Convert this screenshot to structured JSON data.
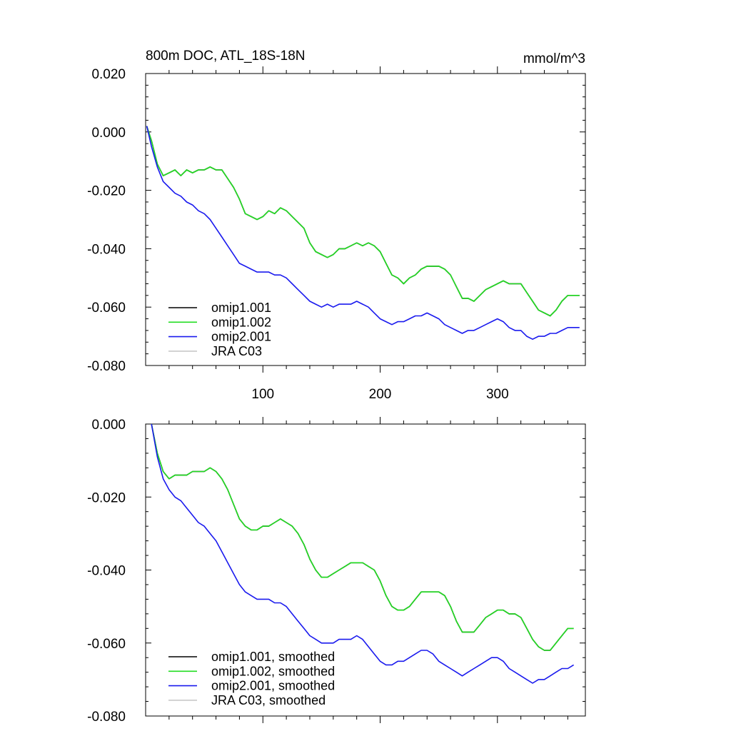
{
  "chart_data": [
    {
      "type": "line",
      "title": "800m DOC, ATL_18S-18N",
      "units": "mmol/m^3",
      "xlim": [
        0,
        375
      ],
      "ylim": [
        -0.08,
        0.02
      ],
      "xticks": [
        100,
        200,
        300
      ],
      "xtick_labels": [
        "100",
        "200",
        "300"
      ],
      "yticks": [
        0.02,
        0.0,
        -0.02,
        -0.04,
        -0.06,
        -0.08
      ],
      "ytick_labels": [
        "0.020",
        "0.000",
        "-0.020",
        "-0.040",
        "-0.060",
        "-0.080"
      ],
      "legend": [
        "omip1.001",
        "omip1.002",
        "omip2.001",
        "JRA C03"
      ],
      "series": [
        {
          "name": "omip1.001",
          "color": "#000000",
          "x": [
            1,
            5,
            10,
            15,
            20,
            25,
            30,
            35,
            40,
            45,
            50,
            55,
            60,
            65,
            70,
            75,
            80,
            85,
            90,
            95,
            100,
            105,
            110,
            115,
            120,
            125,
            130,
            135,
            140,
            145,
            150,
            155,
            160,
            165,
            170,
            175,
            180,
            185,
            190,
            195,
            200,
            205,
            210,
            215,
            220,
            225,
            230,
            235,
            240,
            245,
            250,
            255,
            260,
            265,
            270,
            275,
            280,
            285,
            290,
            295,
            300,
            305,
            310,
            315,
            320,
            325,
            330,
            335,
            340,
            345,
            350,
            355,
            360,
            365,
            370
          ],
          "values": [
            0.002,
            -0.003,
            -0.011,
            -0.015,
            -0.014,
            -0.013,
            -0.015,
            -0.013,
            -0.014,
            -0.013,
            -0.013,
            -0.012,
            -0.013,
            -0.013,
            -0.016,
            -0.019,
            -0.023,
            -0.028,
            -0.029,
            -0.03,
            -0.029,
            -0.027,
            -0.028,
            -0.026,
            -0.027,
            -0.029,
            -0.031,
            -0.033,
            -0.038,
            -0.041,
            -0.042,
            -0.043,
            -0.042,
            -0.04,
            -0.04,
            -0.039,
            -0.038,
            -0.039,
            -0.038,
            -0.039,
            -0.041,
            -0.045,
            -0.049,
            -0.05,
            -0.052,
            -0.05,
            -0.049,
            -0.047,
            -0.046,
            -0.046,
            -0.046,
            -0.047,
            -0.049,
            -0.053,
            -0.057,
            -0.057,
            -0.058,
            -0.056,
            -0.054,
            -0.053,
            -0.052,
            -0.051,
            -0.052,
            -0.052,
            -0.052,
            -0.055,
            -0.058,
            -0.061,
            -0.062,
            -0.063,
            -0.061,
            -0.058,
            -0.056,
            -0.056,
            -0.056
          ]
        },
        {
          "name": "omip1.002",
          "color": "#22dd22",
          "x": [
            1,
            5,
            10,
            15,
            20,
            25,
            30,
            35,
            40,
            45,
            50,
            55,
            60,
            65,
            70,
            75,
            80,
            85,
            90,
            95,
            100,
            105,
            110,
            115,
            120,
            125,
            130,
            135,
            140,
            145,
            150,
            155,
            160,
            165,
            170,
            175,
            180,
            185,
            190,
            195,
            200,
            205,
            210,
            215,
            220,
            225,
            230,
            235,
            240,
            245,
            250,
            255,
            260,
            265,
            270,
            275,
            280,
            285,
            290,
            295,
            300,
            305,
            310,
            315,
            320,
            325,
            330,
            335,
            340,
            345,
            350,
            355,
            360,
            365,
            370
          ],
          "values": [
            0.002,
            -0.003,
            -0.011,
            -0.015,
            -0.014,
            -0.013,
            -0.015,
            -0.013,
            -0.014,
            -0.013,
            -0.013,
            -0.012,
            -0.013,
            -0.013,
            -0.016,
            -0.019,
            -0.023,
            -0.028,
            -0.029,
            -0.03,
            -0.029,
            -0.027,
            -0.028,
            -0.026,
            -0.027,
            -0.029,
            -0.031,
            -0.033,
            -0.038,
            -0.041,
            -0.042,
            -0.043,
            -0.042,
            -0.04,
            -0.04,
            -0.039,
            -0.038,
            -0.039,
            -0.038,
            -0.039,
            -0.041,
            -0.045,
            -0.049,
            -0.05,
            -0.052,
            -0.05,
            -0.049,
            -0.047,
            -0.046,
            -0.046,
            -0.046,
            -0.047,
            -0.049,
            -0.053,
            -0.057,
            -0.057,
            -0.058,
            -0.056,
            -0.054,
            -0.053,
            -0.052,
            -0.051,
            -0.052,
            -0.052,
            -0.052,
            -0.055,
            -0.058,
            -0.061,
            -0.062,
            -0.063,
            -0.061,
            -0.058,
            -0.056,
            -0.056,
            -0.056
          ]
        },
        {
          "name": "omip2.001",
          "color": "#1a1aee",
          "x": [
            1,
            5,
            10,
            15,
            20,
            25,
            30,
            35,
            40,
            45,
            50,
            55,
            60,
            65,
            70,
            75,
            80,
            85,
            90,
            95,
            100,
            105,
            110,
            115,
            120,
            125,
            130,
            135,
            140,
            145,
            150,
            155,
            160,
            165,
            170,
            175,
            180,
            185,
            190,
            195,
            200,
            205,
            210,
            215,
            220,
            225,
            230,
            235,
            240,
            245,
            250,
            255,
            260,
            265,
            270,
            275,
            280,
            285,
            290,
            295,
            300,
            305,
            310,
            315,
            320,
            325,
            330,
            335,
            340,
            345,
            350,
            355,
            360,
            365,
            370
          ],
          "values": [
            0.002,
            -0.005,
            -0.012,
            -0.017,
            -0.019,
            -0.021,
            -0.022,
            -0.024,
            -0.025,
            -0.027,
            -0.028,
            -0.03,
            -0.033,
            -0.036,
            -0.039,
            -0.042,
            -0.045,
            -0.046,
            -0.047,
            -0.048,
            -0.048,
            -0.048,
            -0.049,
            -0.049,
            -0.05,
            -0.052,
            -0.054,
            -0.056,
            -0.058,
            -0.059,
            -0.06,
            -0.059,
            -0.06,
            -0.059,
            -0.059,
            -0.059,
            -0.058,
            -0.059,
            -0.06,
            -0.062,
            -0.064,
            -0.065,
            -0.066,
            -0.065,
            -0.065,
            -0.064,
            -0.063,
            -0.063,
            -0.062,
            -0.063,
            -0.064,
            -0.066,
            -0.067,
            -0.068,
            -0.069,
            -0.068,
            -0.068,
            -0.067,
            -0.066,
            -0.065,
            -0.064,
            -0.065,
            -0.067,
            -0.068,
            -0.068,
            -0.07,
            -0.071,
            -0.07,
            -0.07,
            -0.069,
            -0.069,
            -0.068,
            -0.067,
            -0.067,
            -0.067
          ]
        },
        {
          "name": "JRA C03",
          "color": "#c8c8c8",
          "x": [],
          "values": []
        }
      ]
    },
    {
      "type": "line",
      "title": "",
      "xlim": [
        0,
        375
      ],
      "ylim": [
        -0.08,
        0.0
      ],
      "xticks": [
        100,
        200,
        300
      ],
      "xtick_labels": [],
      "yticks": [
        0.0,
        -0.02,
        -0.04,
        -0.06,
        -0.08
      ],
      "ytick_labels": [
        "0.000",
        "-0.020",
        "-0.040",
        "-0.060",
        "-0.080"
      ],
      "legend": [
        "omip1.001, smoothed",
        "omip1.002, smoothed",
        "omip2.001, smoothed",
        "JRA C03, smoothed"
      ],
      "series": [
        {
          "name": "omip1.001, smoothed",
          "color": "#000000",
          "x": [
            5,
            10,
            15,
            20,
            25,
            30,
            35,
            40,
            45,
            50,
            55,
            60,
            65,
            70,
            75,
            80,
            85,
            90,
            95,
            100,
            105,
            110,
            115,
            120,
            125,
            130,
            135,
            140,
            145,
            150,
            155,
            160,
            165,
            170,
            175,
            180,
            185,
            190,
            195,
            200,
            205,
            210,
            215,
            220,
            225,
            230,
            235,
            240,
            245,
            250,
            255,
            260,
            265,
            270,
            275,
            280,
            285,
            290,
            295,
            300,
            305,
            310,
            315,
            320,
            325,
            330,
            335,
            340,
            345,
            350,
            355,
            360,
            365
          ],
          "values": [
            0.0,
            -0.008,
            -0.013,
            -0.015,
            -0.014,
            -0.014,
            -0.014,
            -0.013,
            -0.013,
            -0.013,
            -0.012,
            -0.013,
            -0.015,
            -0.018,
            -0.022,
            -0.026,
            -0.028,
            -0.029,
            -0.029,
            -0.028,
            -0.028,
            -0.027,
            -0.026,
            -0.027,
            -0.028,
            -0.03,
            -0.033,
            -0.037,
            -0.04,
            -0.042,
            -0.042,
            -0.041,
            -0.04,
            -0.039,
            -0.038,
            -0.038,
            -0.038,
            -0.039,
            -0.04,
            -0.043,
            -0.047,
            -0.05,
            -0.051,
            -0.051,
            -0.05,
            -0.048,
            -0.046,
            -0.046,
            -0.046,
            -0.046,
            -0.047,
            -0.05,
            -0.054,
            -0.057,
            -0.057,
            -0.057,
            -0.055,
            -0.053,
            -0.052,
            -0.051,
            -0.051,
            -0.052,
            -0.052,
            -0.053,
            -0.056,
            -0.059,
            -0.061,
            -0.062,
            -0.062,
            -0.06,
            -0.058,
            -0.056,
            -0.056
          ]
        },
        {
          "name": "omip1.002, smoothed",
          "color": "#22dd22",
          "x": [
            5,
            10,
            15,
            20,
            25,
            30,
            35,
            40,
            45,
            50,
            55,
            60,
            65,
            70,
            75,
            80,
            85,
            90,
            95,
            100,
            105,
            110,
            115,
            120,
            125,
            130,
            135,
            140,
            145,
            150,
            155,
            160,
            165,
            170,
            175,
            180,
            185,
            190,
            195,
            200,
            205,
            210,
            215,
            220,
            225,
            230,
            235,
            240,
            245,
            250,
            255,
            260,
            265,
            270,
            275,
            280,
            285,
            290,
            295,
            300,
            305,
            310,
            315,
            320,
            325,
            330,
            335,
            340,
            345,
            350,
            355,
            360,
            365
          ],
          "values": [
            0.0,
            -0.008,
            -0.013,
            -0.015,
            -0.014,
            -0.014,
            -0.014,
            -0.013,
            -0.013,
            -0.013,
            -0.012,
            -0.013,
            -0.015,
            -0.018,
            -0.022,
            -0.026,
            -0.028,
            -0.029,
            -0.029,
            -0.028,
            -0.028,
            -0.027,
            -0.026,
            -0.027,
            -0.028,
            -0.03,
            -0.033,
            -0.037,
            -0.04,
            -0.042,
            -0.042,
            -0.041,
            -0.04,
            -0.039,
            -0.038,
            -0.038,
            -0.038,
            -0.039,
            -0.04,
            -0.043,
            -0.047,
            -0.05,
            -0.051,
            -0.051,
            -0.05,
            -0.048,
            -0.046,
            -0.046,
            -0.046,
            -0.046,
            -0.047,
            -0.05,
            -0.054,
            -0.057,
            -0.057,
            -0.057,
            -0.055,
            -0.053,
            -0.052,
            -0.051,
            -0.051,
            -0.052,
            -0.052,
            -0.053,
            -0.056,
            -0.059,
            -0.061,
            -0.062,
            -0.062,
            -0.06,
            -0.058,
            -0.056,
            -0.056
          ]
        },
        {
          "name": "omip2.001, smoothed",
          "color": "#1a1aee",
          "x": [
            5,
            10,
            15,
            20,
            25,
            30,
            35,
            40,
            45,
            50,
            55,
            60,
            65,
            70,
            75,
            80,
            85,
            90,
            95,
            100,
            105,
            110,
            115,
            120,
            125,
            130,
            135,
            140,
            145,
            150,
            155,
            160,
            165,
            170,
            175,
            180,
            185,
            190,
            195,
            200,
            205,
            210,
            215,
            220,
            225,
            230,
            235,
            240,
            245,
            250,
            255,
            260,
            265,
            270,
            275,
            280,
            285,
            290,
            295,
            300,
            305,
            310,
            315,
            320,
            325,
            330,
            335,
            340,
            345,
            350,
            355,
            360,
            365
          ],
          "values": [
            0.0,
            -0.009,
            -0.015,
            -0.018,
            -0.02,
            -0.021,
            -0.023,
            -0.025,
            -0.027,
            -0.028,
            -0.03,
            -0.032,
            -0.035,
            -0.038,
            -0.041,
            -0.044,
            -0.046,
            -0.047,
            -0.048,
            -0.048,
            -0.048,
            -0.049,
            -0.049,
            -0.05,
            -0.052,
            -0.054,
            -0.056,
            -0.058,
            -0.059,
            -0.06,
            -0.06,
            -0.06,
            -0.059,
            -0.059,
            -0.059,
            -0.058,
            -0.059,
            -0.061,
            -0.063,
            -0.065,
            -0.066,
            -0.066,
            -0.065,
            -0.065,
            -0.064,
            -0.063,
            -0.062,
            -0.062,
            -0.063,
            -0.065,
            -0.066,
            -0.067,
            -0.068,
            -0.069,
            -0.068,
            -0.067,
            -0.066,
            -0.065,
            -0.064,
            -0.064,
            -0.065,
            -0.067,
            -0.068,
            -0.069,
            -0.07,
            -0.071,
            -0.07,
            -0.07,
            -0.069,
            -0.068,
            -0.067,
            -0.067,
            -0.066
          ]
        },
        {
          "name": "JRA C03, smoothed",
          "color": "#c8c8c8",
          "x": [],
          "values": []
        }
      ]
    }
  ]
}
